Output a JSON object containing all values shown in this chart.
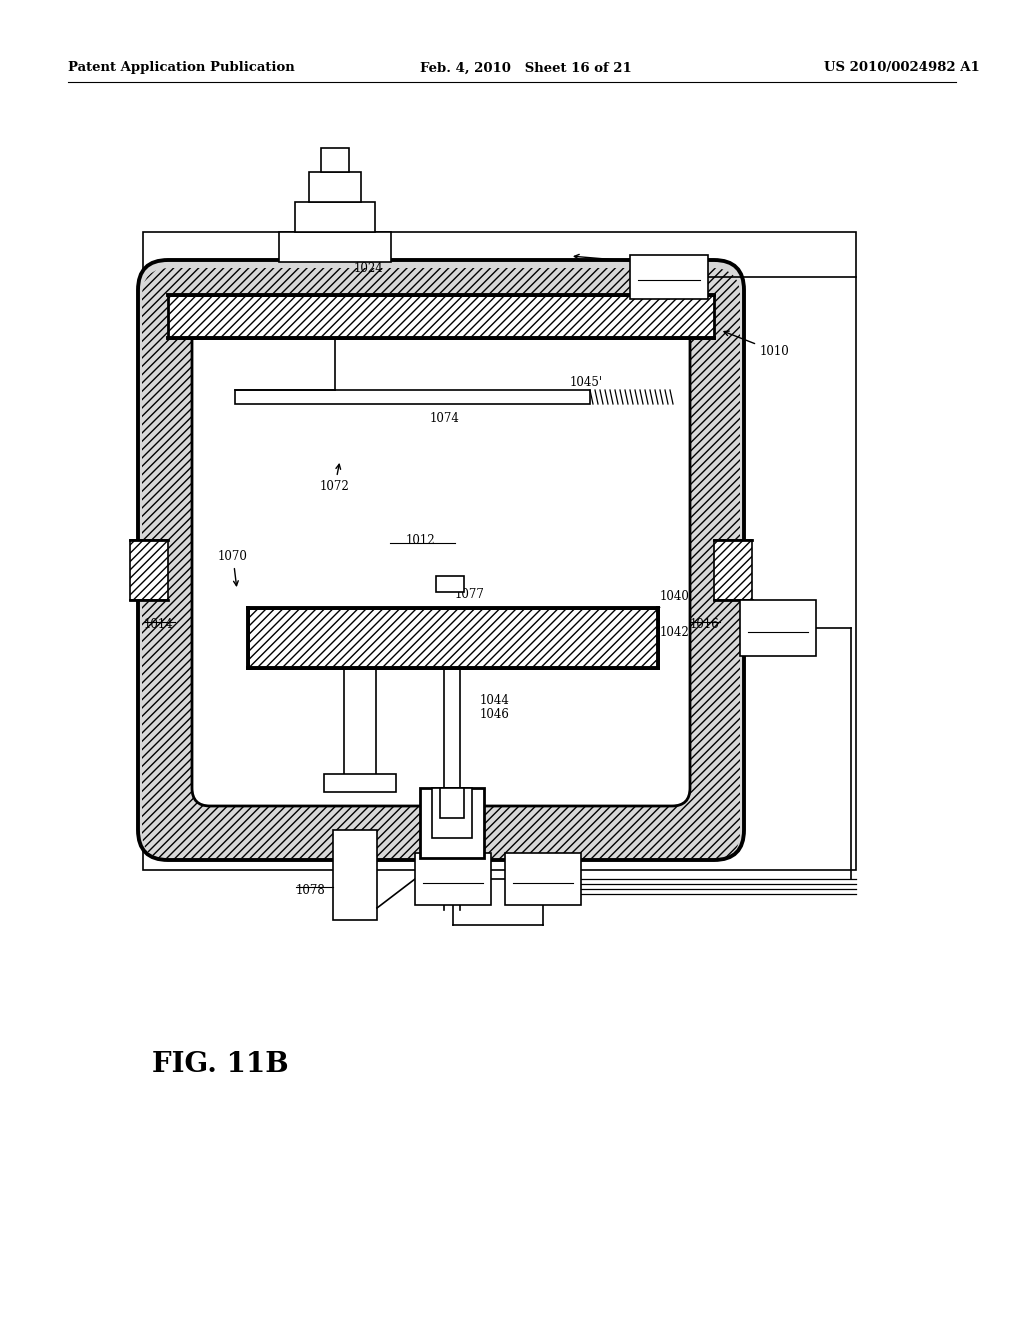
{
  "bg_color": "#ffffff",
  "header_left": "Patent Application Publication",
  "header_mid": "Feb. 4, 2010   Sheet 16 of 21",
  "header_right": "US 2010/0024982 A1",
  "fig_label": "FIG. 11B"
}
